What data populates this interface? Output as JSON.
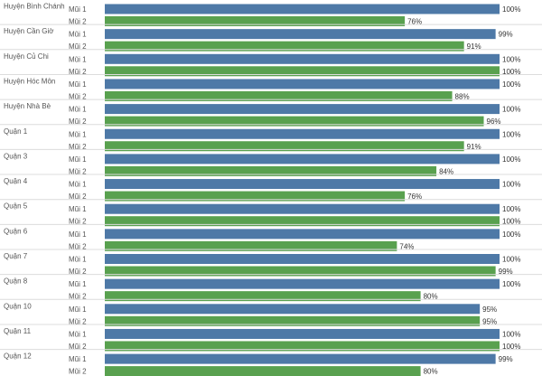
{
  "colors": {
    "dose1": "#4e79a7",
    "dose2": "#59a14f",
    "separator": "#dcdcdc",
    "text": "#555555"
  },
  "chart_data": {
    "type": "bar",
    "orientation": "horizontal",
    "xlim": [
      0,
      100
    ],
    "grid": false,
    "legend": "none",
    "series_labels": [
      "Mũi 1",
      "Mũi 2"
    ],
    "groups": [
      {
        "district": "Huyện Bình Chánh",
        "values": [
          100,
          76
        ],
        "labels": [
          "100%",
          "76%"
        ]
      },
      {
        "district": "Huyện Cần Giờ",
        "values": [
          99,
          91
        ],
        "labels": [
          "99%",
          "91%"
        ]
      },
      {
        "district": "Huyện Củ Chi",
        "values": [
          100,
          100
        ],
        "labels": [
          "100%",
          "100%"
        ]
      },
      {
        "district": "Huyện Hóc Môn",
        "values": [
          100,
          88
        ],
        "labels": [
          "100%",
          "88%"
        ]
      },
      {
        "district": "Huyện Nhà Bè",
        "values": [
          100,
          96
        ],
        "labels": [
          "100%",
          "96%"
        ]
      },
      {
        "district": "Quận 1",
        "values": [
          100,
          91
        ],
        "labels": [
          "100%",
          "91%"
        ]
      },
      {
        "district": "Quận 3",
        "values": [
          100,
          84
        ],
        "labels": [
          "100%",
          "84%"
        ]
      },
      {
        "district": "Quận 4",
        "values": [
          100,
          76
        ],
        "labels": [
          "100%",
          "76%"
        ]
      },
      {
        "district": "Quận 5",
        "values": [
          100,
          100
        ],
        "labels": [
          "100%",
          "100%"
        ]
      },
      {
        "district": "Quận 6",
        "values": [
          100,
          74
        ],
        "labels": [
          "100%",
          "74%"
        ]
      },
      {
        "district": "Quận 7",
        "values": [
          100,
          99
        ],
        "labels": [
          "100%",
          "99%"
        ]
      },
      {
        "district": "Quận 8",
        "values": [
          100,
          80
        ],
        "labels": [
          "100%",
          "80%"
        ]
      },
      {
        "district": "Quận 10",
        "values": [
          95,
          95
        ],
        "labels": [
          "95%",
          "95%"
        ]
      },
      {
        "district": "Quận 11",
        "values": [
          100,
          100
        ],
        "labels": [
          "100%",
          "100%"
        ]
      },
      {
        "district": "Quận 12",
        "values": [
          99,
          80
        ],
        "labels": [
          "99%",
          "80%"
        ]
      }
    ]
  }
}
